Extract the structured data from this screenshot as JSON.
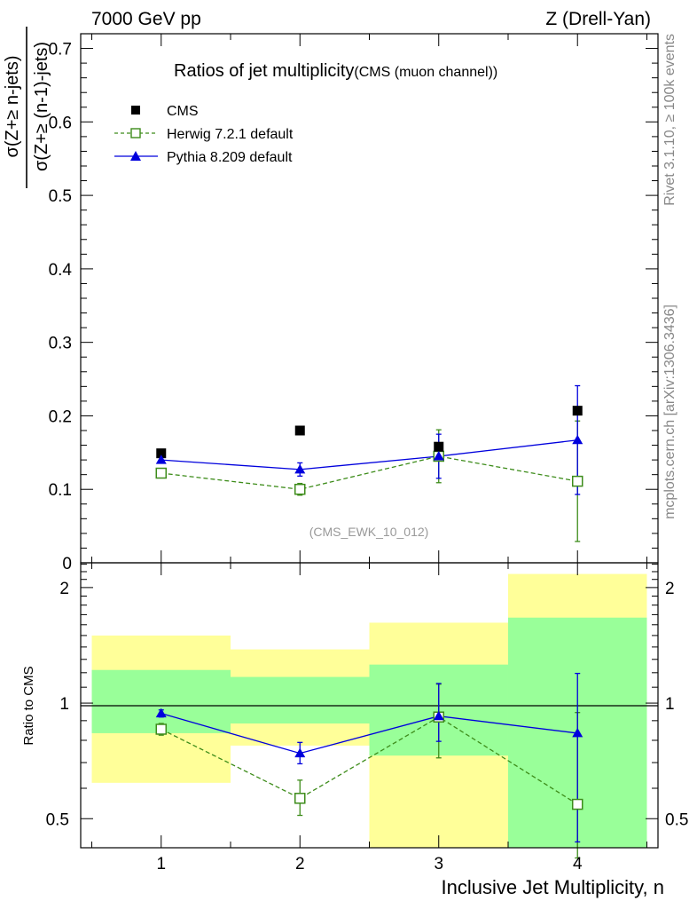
{
  "header": {
    "left": "7000 GeV pp",
    "right": "Z (Drell-Yan)"
  },
  "side_text": {
    "rivet": "Rivet 3.1.10, ≥ 100k events",
    "mcplots": "mcplots.cern.ch [arXiv:1306.3436]"
  },
  "chart_data": [
    {
      "type": "scatter",
      "title": "Ratios of jet multiplicity",
      "subtitle": "(CMS (muon channel))",
      "watermark": "(CMS_EWK_10_012)",
      "ylabel_numerator": "σ(Z+≥ n-jets)",
      "ylabel_denominator": "σ(Z+≥ (n-1)-jets)",
      "xlabel": "Inclusive Jet Multiplicity, n",
      "xlim": [
        0.42,
        4.58
      ],
      "ylim": [
        0,
        0.72
      ],
      "x_ticks": [
        "1",
        "2",
        "3",
        "4"
      ],
      "y_ticks": [
        "0.1",
        "0.2",
        "0.3",
        "0.4",
        "0.5",
        "0.6",
        "0.7"
      ],
      "y_zero_label": "0",
      "legend_position": "top-left",
      "series": [
        {
          "name": "CMS",
          "style": "square-filled",
          "color": "#000000",
          "x": [
            1,
            2,
            3,
            4
          ],
          "y": [
            0.149,
            0.18,
            0.158,
            0.207
          ]
        },
        {
          "name": "Herwig 7.2.1 default",
          "style": "square-open-dashed",
          "color": "#3d8c1a",
          "x": [
            1,
            2,
            3,
            4
          ],
          "y": [
            0.122,
            0.1,
            0.145,
            0.111
          ],
          "err": [
            0.005,
            0.008,
            0.036,
            0.082
          ]
        },
        {
          "name": "Pythia 8.209 default",
          "style": "triangle-filled-solid",
          "color": "#0000dd",
          "x": [
            1,
            2,
            3,
            4
          ],
          "y": [
            0.14,
            0.127,
            0.145,
            0.167
          ],
          "err": [
            0.004,
            0.009,
            0.03,
            0.074
          ]
        }
      ]
    },
    {
      "type": "scatter",
      "ylabel": "Ratio to CMS",
      "xlabel": "Inclusive Jet Multiplicity, n",
      "ylim": [
        0.42,
        2.32
      ],
      "y_ticks": [
        "0.5",
        "1",
        "2"
      ],
      "y_log": true,
      "reference_line": 1,
      "bands": {
        "bins": [
          [
            0.5,
            1.5
          ],
          [
            1.5,
            2.5
          ],
          [
            2.5,
            3.5
          ],
          [
            3.5,
            4.5
          ]
        ],
        "inner": [
          [
            0.835,
            1.22
          ],
          [
            0.885,
            1.17
          ],
          [
            0.73,
            1.26
          ],
          [
            0.405,
            1.67
          ]
        ],
        "outer": [
          [
            0.62,
            1.5
          ],
          [
            0.775,
            1.38
          ],
          [
            0.42,
            1.62
          ],
          [
            0.42,
            2.17
          ]
        ],
        "inner_color": "#99ff99",
        "outer_color": "#ffff99"
      },
      "series": [
        {
          "name": "Herwig 7.2.1 default",
          "color": "#3d8c1a",
          "x": [
            1,
            2,
            3,
            4
          ],
          "y": [
            0.855,
            0.565,
            0.92,
            0.545
          ],
          "err_low": [
            0.03,
            0.055,
            0.2,
            0.15
          ],
          "err_high": [
            0.03,
            0.065,
            0.2,
            0.4
          ]
        },
        {
          "name": "Pythia 8.209 default",
          "color": "#0000dd",
          "x": [
            1,
            2,
            3,
            4
          ],
          "y": [
            0.94,
            0.74,
            0.925,
            0.835
          ],
          "err_low": [
            0.02,
            0.045,
            0.13,
            0.4
          ],
          "err_high": [
            0.02,
            0.05,
            0.2,
            0.36
          ]
        }
      ]
    }
  ]
}
